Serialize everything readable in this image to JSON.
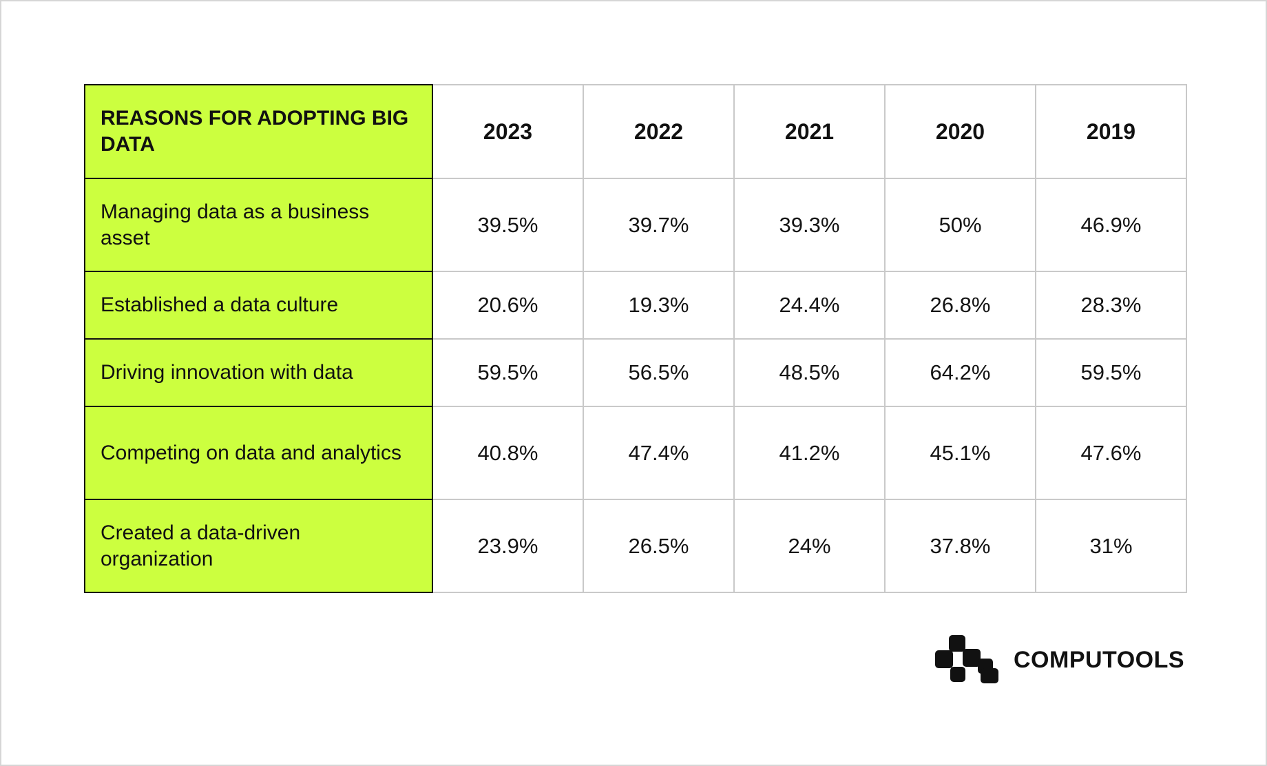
{
  "chart_data": {
    "type": "table",
    "columns": [
      "REASONS FOR ADOPTING BIG DATA",
      "2023",
      "2022",
      "2021",
      "2020",
      "2019"
    ],
    "rows": [
      {
        "label": "Managing data as a business asset",
        "values": [
          "39.5%",
          "39.7%",
          "39.3%",
          "50%",
          "46.9%"
        ]
      },
      {
        "label": "Established a data culture",
        "values": [
          "20.6%",
          "19.3%",
          "24.4%",
          "26.8%",
          "28.3%"
        ]
      },
      {
        "label": "Driving innovation with data",
        "values": [
          "59.5%",
          "56.5%",
          "48.5%",
          "64.2%",
          "59.5%"
        ]
      },
      {
        "label": "Competing on data and analytics",
        "values": [
          "40.8%",
          "47.4%",
          "41.2%",
          "45.1%",
          "47.6%"
        ]
      },
      {
        "label": "Created a data-driven organization",
        "values": [
          "23.9%",
          "26.5%",
          "24%",
          "37.8%",
          "31%"
        ]
      }
    ]
  },
  "brand": {
    "name": "COMPUTOOLS",
    "logo_icon": "computools-logo-icon"
  },
  "colors": {
    "label_background": "#ccff3f",
    "label_border": "#111111",
    "grid_border": "#c9c9c9",
    "text": "#111111"
  }
}
